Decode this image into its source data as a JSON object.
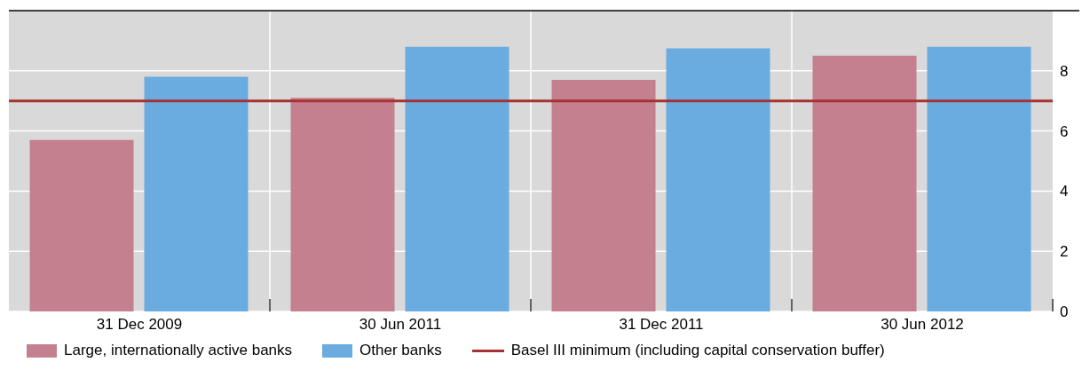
{
  "chart_data": {
    "type": "bar",
    "categories": [
      "31 Dec 2009",
      "30 Jun 2011",
      "31 Dec 2011",
      "30 Jun 2012"
    ],
    "series": [
      {
        "name": "Large, internationally active banks",
        "color": "#c4808f",
        "values": [
          5.7,
          7.1,
          7.7,
          8.5
        ]
      },
      {
        "name": "Other banks",
        "color": "#6aace0",
        "values": [
          7.8,
          8.8,
          8.75,
          8.8
        ]
      }
    ],
    "ylim": [
      0,
      10
    ],
    "yticks": [
      0,
      2,
      4,
      6,
      8
    ],
    "ref_lines": [
      {
        "axis": "y",
        "value": 7.0,
        "label": "Basel III minimum (including capital conservation buffer)",
        "color": "#a83232"
      }
    ],
    "grid": true,
    "legend": "bottom left"
  }
}
